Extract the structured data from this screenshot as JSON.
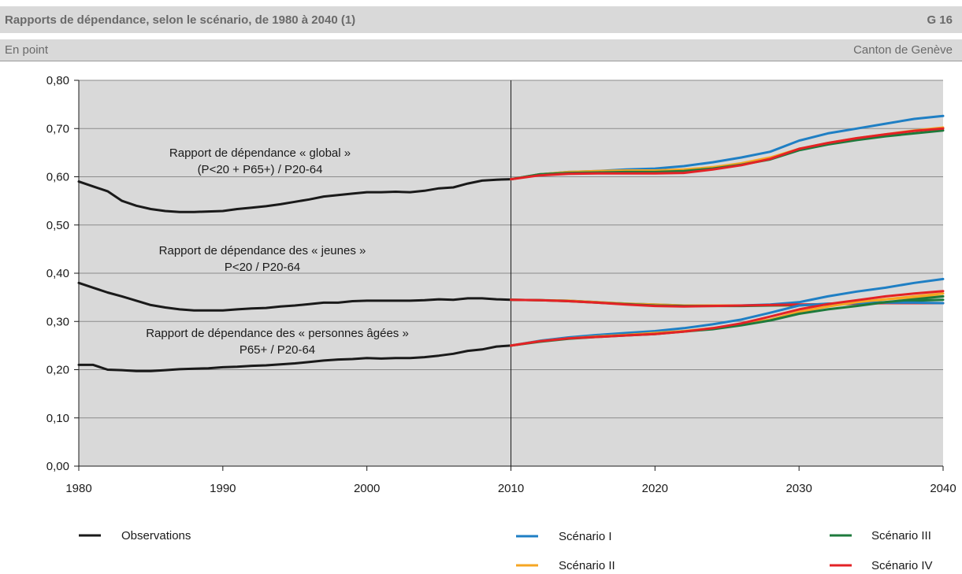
{
  "header": {
    "title": "Rapports de dépendance, selon le scénario, de 1980 à 2040 (1)",
    "code": "G 16",
    "unit": "En point",
    "geography": "Canton de Genève"
  },
  "colors": {
    "observations": "#1a1a1a",
    "scenario_1": "#1f7fc4",
    "scenario_2": "#f5a623",
    "scenario_3": "#1e7a3c",
    "scenario_4": "#e32226",
    "plot_bg": "#d9d9d9",
    "grid": "#8c8c8c"
  },
  "chart_data": {
    "type": "line",
    "xlim": [
      1980,
      2040
    ],
    "ylim": [
      0,
      0.8
    ],
    "x_ticks": [
      "1980",
      "1990",
      "2000",
      "2010",
      "2020",
      "2030",
      "2040"
    ],
    "y_ticks": [
      "0,00",
      "0,10",
      "0,20",
      "0,30",
      "0,40",
      "0,50",
      "0,60",
      "0,70",
      "0,80"
    ],
    "grid": "horizontal",
    "divider_year": 2010,
    "legend_position": "bottom",
    "legend": [
      "Observations",
      "Scénario I",
      "Scénario II",
      "Scénario III",
      "Scénario IV"
    ],
    "annotations": [
      [
        "Rapport de dépendance « global »",
        "(P<20 + P65+) / P20-64"
      ],
      [
        "Rapport de dépendance  des « jeunes »",
        "P<20  / P20-64"
      ],
      [
        "Rapport de dépendance des « personnes âgées »",
        "P65+ / P20-64"
      ]
    ],
    "observations": {
      "x": [
        1980,
        1981,
        1982,
        1983,
        1984,
        1985,
        1986,
        1987,
        1988,
        1989,
        1990,
        1991,
        1992,
        1993,
        1994,
        1995,
        1996,
        1997,
        1998,
        1999,
        2000,
        2001,
        2002,
        2003,
        2004,
        2005,
        2006,
        2007,
        2008,
        2009,
        2010
      ],
      "global": [
        0.59,
        0.58,
        0.57,
        0.55,
        0.54,
        0.533,
        0.529,
        0.527,
        0.527,
        0.528,
        0.529,
        0.533,
        0.536,
        0.539,
        0.543,
        0.548,
        0.553,
        0.559,
        0.562,
        0.565,
        0.568,
        0.568,
        0.569,
        0.568,
        0.571,
        0.576,
        0.578,
        0.586,
        0.592,
        0.594,
        0.595
      ],
      "jeunes": [
        0.38,
        0.37,
        0.36,
        0.352,
        0.343,
        0.334,
        0.329,
        0.325,
        0.323,
        0.323,
        0.323,
        0.325,
        0.327,
        0.328,
        0.331,
        0.333,
        0.336,
        0.339,
        0.339,
        0.342,
        0.343,
        0.343,
        0.343,
        0.343,
        0.344,
        0.346,
        0.345,
        0.348,
        0.348,
        0.346,
        0.345
      ],
      "agees": [
        0.21,
        0.21,
        0.2,
        0.199,
        0.197,
        0.197,
        0.199,
        0.201,
        0.202,
        0.203,
        0.205,
        0.206,
        0.208,
        0.209,
        0.211,
        0.213,
        0.216,
        0.219,
        0.221,
        0.222,
        0.224,
        0.223,
        0.224,
        0.224,
        0.226,
        0.229,
        0.233,
        0.239,
        0.242,
        0.248,
        0.25
      ]
    },
    "projection_x": [
      2010,
      2012,
      2014,
      2016,
      2018,
      2020,
      2022,
      2024,
      2026,
      2028,
      2030,
      2032,
      2034,
      2036,
      2038,
      2040
    ],
    "series": [
      {
        "name": "Scénario I",
        "global": [
          0.595,
          0.605,
          0.61,
          0.612,
          0.615,
          0.617,
          0.622,
          0.63,
          0.64,
          0.652,
          0.675,
          0.69,
          0.7,
          0.71,
          0.72,
          0.726
        ],
        "jeunes": [
          0.345,
          0.344,
          0.343,
          0.34,
          0.337,
          0.335,
          0.333,
          0.333,
          0.333,
          0.335,
          0.34,
          0.352,
          0.362,
          0.37,
          0.38,
          0.388
        ],
        "agees": [
          0.25,
          0.26,
          0.267,
          0.272,
          0.276,
          0.28,
          0.286,
          0.294,
          0.304,
          0.318,
          0.333,
          0.337,
          0.338,
          0.339,
          0.339,
          0.338
        ]
      },
      {
        "name": "Scénario II",
        "global": [
          0.595,
          0.605,
          0.61,
          0.612,
          0.613,
          0.613,
          0.615,
          0.62,
          0.628,
          0.64,
          0.658,
          0.67,
          0.68,
          0.688,
          0.696,
          0.702
        ],
        "jeunes": [
          0.345,
          0.344,
          0.343,
          0.34,
          0.337,
          0.335,
          0.333,
          0.333,
          0.333,
          0.333,
          0.333,
          0.336,
          0.34,
          0.346,
          0.352,
          0.358
        ],
        "agees": [
          0.25,
          0.259,
          0.265,
          0.269,
          0.272,
          0.276,
          0.28,
          0.286,
          0.294,
          0.304,
          0.32,
          0.331,
          0.34,
          0.346,
          0.35,
          0.352
        ]
      },
      {
        "name": "Scénario III",
        "global": [
          0.595,
          0.605,
          0.608,
          0.609,
          0.61,
          0.61,
          0.612,
          0.617,
          0.625,
          0.636,
          0.655,
          0.667,
          0.676,
          0.684,
          0.69,
          0.696
        ],
        "jeunes": [
          0.345,
          0.344,
          0.342,
          0.339,
          0.336,
          0.333,
          0.332,
          0.332,
          0.332,
          0.333,
          0.334,
          0.335,
          0.337,
          0.34,
          0.343,
          0.345
        ],
        "agees": [
          0.25,
          0.258,
          0.264,
          0.268,
          0.271,
          0.274,
          0.279,
          0.284,
          0.292,
          0.302,
          0.316,
          0.325,
          0.332,
          0.34,
          0.346,
          0.352
        ]
      },
      {
        "name": "Scénario IV",
        "global": [
          0.595,
          0.603,
          0.606,
          0.607,
          0.607,
          0.607,
          0.608,
          0.615,
          0.624,
          0.637,
          0.658,
          0.67,
          0.68,
          0.688,
          0.695,
          0.7
        ],
        "jeunes": [
          0.345,
          0.344,
          0.342,
          0.339,
          0.335,
          0.332,
          0.331,
          0.332,
          0.333,
          0.334,
          0.335,
          0.336,
          0.337,
          0.338,
          0.338,
          0.338
        ],
        "agees": [
          0.25,
          0.259,
          0.265,
          0.268,
          0.271,
          0.274,
          0.279,
          0.286,
          0.296,
          0.31,
          0.325,
          0.336,
          0.344,
          0.352,
          0.358,
          0.363
        ]
      }
    ]
  }
}
